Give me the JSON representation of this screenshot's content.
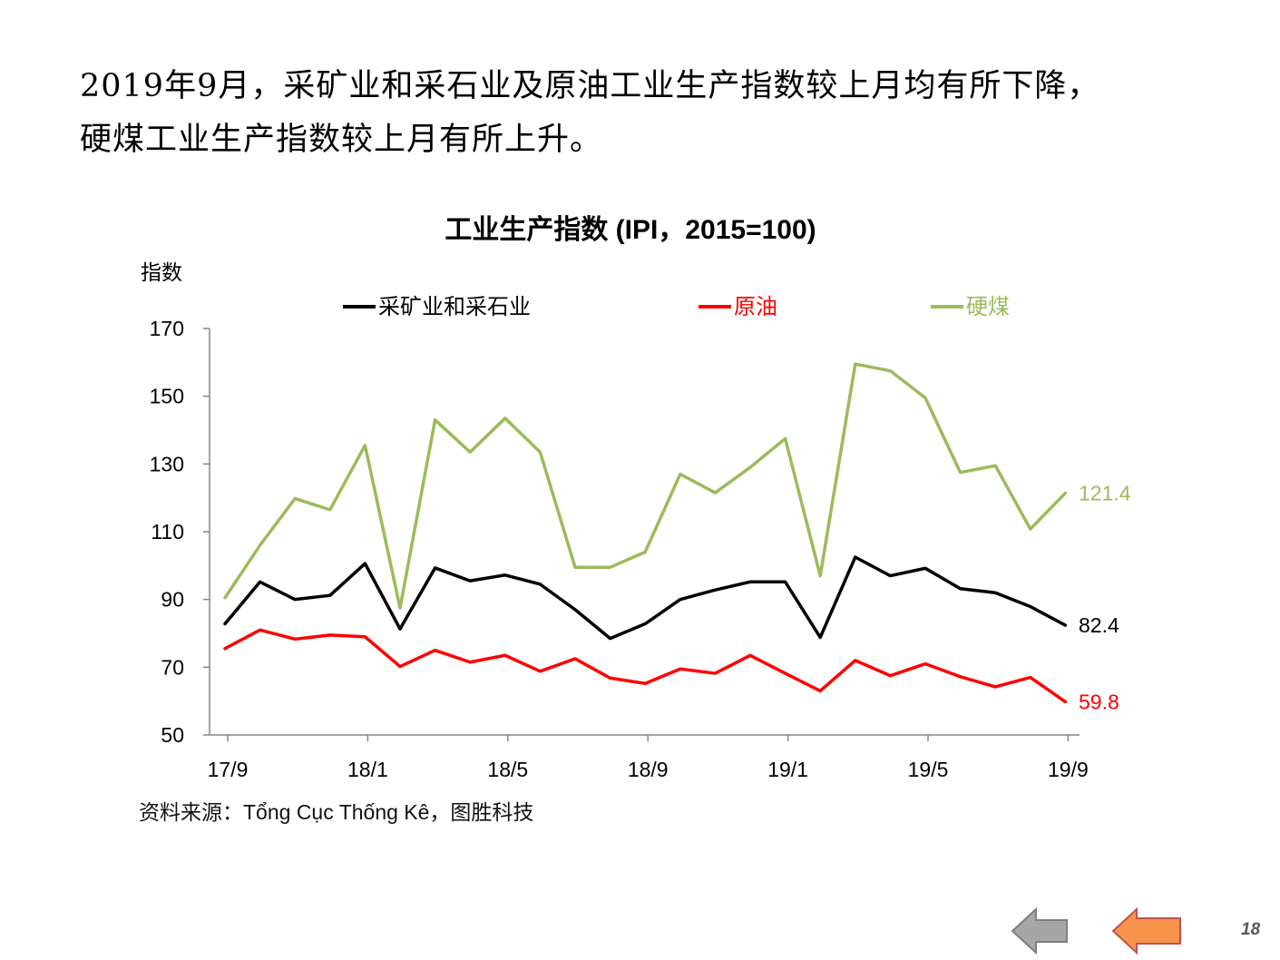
{
  "headline": {
    "line1": "2019年9月，采矿业和采石业及原油工业生产指数较上月均有所下降，",
    "line2": "硬煤工业生产指数较上月有所上升。"
  },
  "chart_data": {
    "type": "line",
    "title": "工业生产指数 (IPI，2015=100)",
    "ylabel": "指数",
    "xlabel": "",
    "ylim": [
      50,
      170
    ],
    "yticks": [
      50,
      70,
      90,
      110,
      130,
      150,
      170
    ],
    "x_tick_labels": [
      "17/9",
      "18/1",
      "18/5",
      "18/9",
      "19/1",
      "19/5",
      "19/9"
    ],
    "x": [
      "17/9",
      "17/10",
      "17/11",
      "17/12",
      "18/1",
      "18/2",
      "18/3",
      "18/4",
      "18/5",
      "18/6",
      "18/7",
      "18/8",
      "18/9",
      "18/10",
      "18/11",
      "18/12",
      "19/1",
      "19/2",
      "19/3",
      "19/4",
      "19/5",
      "19/6",
      "19/7",
      "19/8",
      "19/9"
    ],
    "series": [
      {
        "name": "采矿业和采石业",
        "color": "#000000",
        "end_label": "82.4",
        "values": [
          82.8,
          95.2,
          90.0,
          91.2,
          100.6,
          81.3,
          99.3,
          95.5,
          97.2,
          94.5,
          87.0,
          78.5,
          82.8,
          90.0,
          92.8,
          95.2,
          95.2,
          78.8,
          102.5,
          97.0,
          99.2,
          93.2,
          92.0,
          87.9,
          82.4
        ]
      },
      {
        "name": "原油",
        "color": "#ff0000",
        "end_label": "59.8",
        "values": [
          75.5,
          81.0,
          78.3,
          79.5,
          79.0,
          70.2,
          75.0,
          71.5,
          73.5,
          68.8,
          72.5,
          66.8,
          65.2,
          69.5,
          68.2,
          73.5,
          68.2,
          63.0,
          72.0,
          67.5,
          71.0,
          67.2,
          64.2,
          67.0,
          59.8
        ]
      },
      {
        "name": "硬煤",
        "color": "#9bbb59",
        "end_label": "121.4",
        "values": [
          90.5,
          106.0,
          119.8,
          116.5,
          135.5,
          87.5,
          143.0,
          133.5,
          143.5,
          133.5,
          99.5,
          99.5,
          104.0,
          127.0,
          121.5,
          129.0,
          137.5,
          97.0,
          159.5,
          157.5,
          149.5,
          127.5,
          129.5,
          110.8,
          121.4
        ]
      }
    ]
  },
  "source_text": "资料来源：Tổng Cục Thống Kê，图胜科技",
  "page_number": "18",
  "nav": {
    "back_color": "#a6a6a6",
    "forward_color": "#f7934a"
  }
}
